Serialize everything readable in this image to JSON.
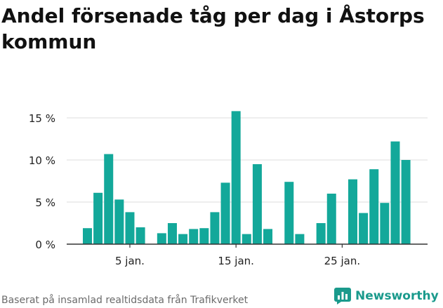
{
  "title": "Andel försenade tåg per dag i Åstorps kommun",
  "source": "Baserat på insamlad realtidsdata från Trafikverket",
  "brand": {
    "name": "Newsworthy",
    "color": "#1a9a8c",
    "icon": "newsworthy-logo-icon"
  },
  "colors": {
    "bar": "#13a89a",
    "grid": "#dddddd",
    "axis": "#333333"
  },
  "chart_data": {
    "type": "bar",
    "x": [
      1,
      2,
      3,
      4,
      5,
      6,
      7,
      8,
      9,
      10,
      11,
      12,
      13,
      14,
      15,
      16,
      17,
      18,
      19,
      20,
      21,
      22,
      23,
      24,
      25,
      26,
      27,
      28,
      29,
      30,
      31
    ],
    "values": [
      1.9,
      6.1,
      10.7,
      5.3,
      3.8,
      2.0,
      null,
      1.3,
      2.5,
      1.2,
      1.8,
      1.9,
      3.8,
      7.3,
      15.8,
      1.2,
      9.5,
      1.8,
      null,
      7.4,
      1.2,
      null,
      2.5,
      6.0,
      null,
      7.7,
      3.7,
      8.9,
      4.9,
      12.2,
      10.0
    ],
    "x_ticks": [
      5,
      15,
      25
    ],
    "x_tick_labels": [
      "5 jan.",
      "15 jan.",
      "25 jan."
    ],
    "y_ticks": [
      0,
      5,
      10,
      15
    ],
    "y_tick_labels": [
      "0 %",
      "5 %",
      "10 %",
      "15 %"
    ],
    "ylim": [
      0,
      16.5
    ],
    "xlim": [
      0,
      31.5
    ],
    "grid": true,
    "legend": "none",
    "title": "Andel försenade tåg per dag i Åstorps kommun",
    "xlabel": "",
    "ylabel": ""
  }
}
